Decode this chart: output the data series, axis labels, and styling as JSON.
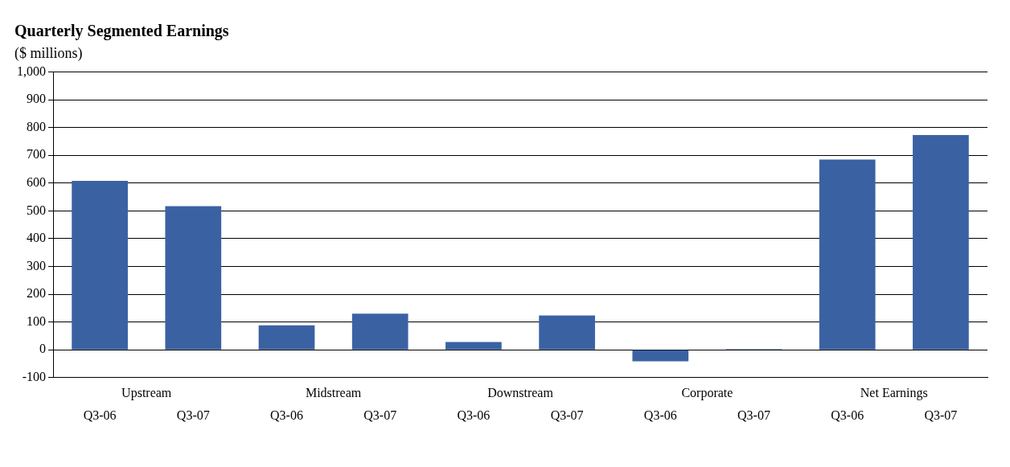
{
  "chart_data": {
    "type": "bar",
    "title": "Quarterly Segmented Earnings",
    "subtitle": "($ millions)",
    "categories": [
      "Q3-06",
      "Q3-07",
      "Q3-06",
      "Q3-07",
      "Q3-06",
      "Q3-07",
      "Q3-06",
      "Q3-07",
      "Q3-06",
      "Q3-07"
    ],
    "values": [
      608,
      517,
      88,
      130,
      28,
      124,
      -41,
      3,
      685,
      773
    ],
    "color": "#3a62a3",
    "annotations": [
      "Upstream",
      "Midstream",
      "Downstream",
      "Corporate",
      "Net Earnings"
    ],
    "ylim": [
      -100,
      1000
    ],
    "yticks": [
      -100,
      0,
      100,
      200,
      300,
      400,
      500,
      600,
      700,
      800,
      900,
      {
        "value": 1000,
        "label": "1,000"
      }
    ],
    "grid": "y",
    "legend": false
  }
}
